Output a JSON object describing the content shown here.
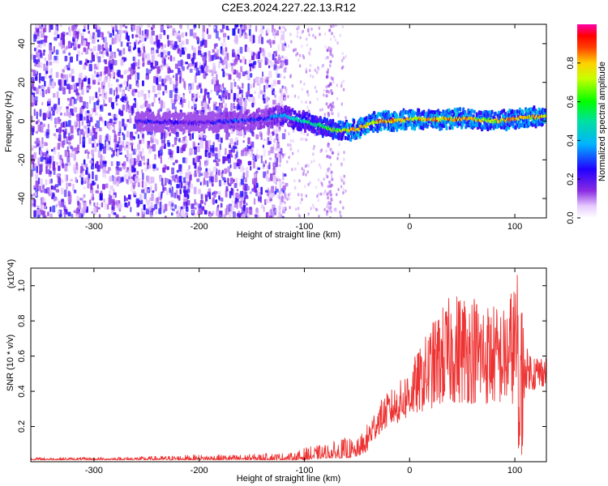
{
  "figure_title": "C2E3.2024.227.22.13.R12",
  "chart_data": [
    {
      "type": "heatmap",
      "title": "C2E3.2024.227.22.13.R12",
      "xlabel": "Height of straight line (km)",
      "ylabel": "Frequency (Hz)",
      "xlim": [
        -360,
        130
      ],
      "ylim": [
        -50,
        50
      ],
      "xticks": [
        -300,
        -200,
        -100,
        0,
        100
      ],
      "xtick_labels": [
        "-300",
        "-200",
        "-100",
        "0",
        "100"
      ],
      "yticks": [
        -40,
        -20,
        0,
        20,
        40
      ],
      "ytick_labels": [
        "-40",
        "-20",
        "0",
        "20",
        "40"
      ],
      "colorbar": {
        "label": "Normalized spectral amplitude",
        "range": [
          0,
          1
        ],
        "ticks": [
          0.0,
          0.2,
          0.4,
          0.6,
          0.8
        ],
        "tick_labels": [
          "0.0",
          "0.2",
          "0.4",
          "0.6",
          "0.8"
        ],
        "colormap": "rainbow (white-violet-blue-cyan-green-yellow-red-magenta)"
      },
      "ridge": {
        "description": "Dominant frequency band vs height, approx. centre frequency (Hz) and peak amplitude",
        "height_km": [
          -250,
          -200,
          -170,
          -140,
          -120,
          -100,
          -80,
          -70,
          -60,
          -50,
          -40,
          -30,
          -20,
          0,
          20,
          40,
          60,
          80,
          100,
          110,
          130
        ],
        "freq_hz": [
          0,
          -1,
          0,
          1,
          3,
          0,
          -3,
          -5,
          -5,
          -4,
          -2,
          0,
          0,
          1,
          1,
          1,
          1,
          0,
          1,
          2,
          2
        ],
        "amplitude": [
          0.25,
          0.2,
          0.3,
          0.3,
          0.45,
          0.55,
          0.6,
          0.7,
          0.85,
          0.9,
          0.85,
          0.9,
          0.9,
          0.85,
          0.9,
          0.9,
          0.85,
          0.8,
          0.9,
          0.9,
          0.85
        ]
      },
      "noise_region_km": [
        -360,
        -125
      ]
    },
    {
      "type": "line",
      "xlabel": "Height of straight line (km)",
      "ylabel": "SNR (10 * v/v)",
      "y_multiplier_label": "(x10^4)",
      "xlim": [
        -360,
        130
      ],
      "ylim": [
        0,
        1.1
      ],
      "xticks": [
        -300,
        -200,
        -100,
        0,
        100
      ],
      "xtick_labels": [
        "-300",
        "-200",
        "-100",
        "0",
        "100"
      ],
      "yticks": [
        0.2,
        0.4,
        0.6,
        0.8,
        1.0
      ],
      "ytick_labels": [
        "0.2",
        "0.4",
        "0.6",
        "0.8",
        "1.0"
      ],
      "series": [
        {
          "name": "SNR",
          "color": "#ee3333",
          "envelope_x": [
            -360,
            -300,
            -250,
            -200,
            -160,
            -130,
            -110,
            -100,
            -80,
            -60,
            -50,
            -40,
            -30,
            -20,
            -10,
            0,
            10,
            20,
            30,
            40,
            50,
            60,
            70,
            80,
            90,
            100,
            105,
            110,
            120,
            130
          ],
          "envelope_low": [
            0.01,
            0.01,
            0.01,
            0.01,
            0.01,
            0.01,
            0.01,
            0.01,
            0.02,
            0.02,
            0.03,
            0.06,
            0.15,
            0.2,
            0.22,
            0.25,
            0.28,
            0.3,
            0.32,
            0.33,
            0.33,
            0.33,
            0.32,
            0.33,
            0.32,
            0.33,
            0.04,
            0.42,
            0.4,
            0.44
          ],
          "envelope_high": [
            0.025,
            0.025,
            0.03,
            0.04,
            0.04,
            0.05,
            0.05,
            0.08,
            0.1,
            0.14,
            0.12,
            0.22,
            0.33,
            0.4,
            0.45,
            0.55,
            0.65,
            0.78,
            0.88,
            0.95,
            0.98,
            0.97,
            0.93,
            0.9,
            0.88,
            1.05,
            1.1,
            0.65,
            0.62,
            0.6
          ]
        }
      ]
    }
  ]
}
